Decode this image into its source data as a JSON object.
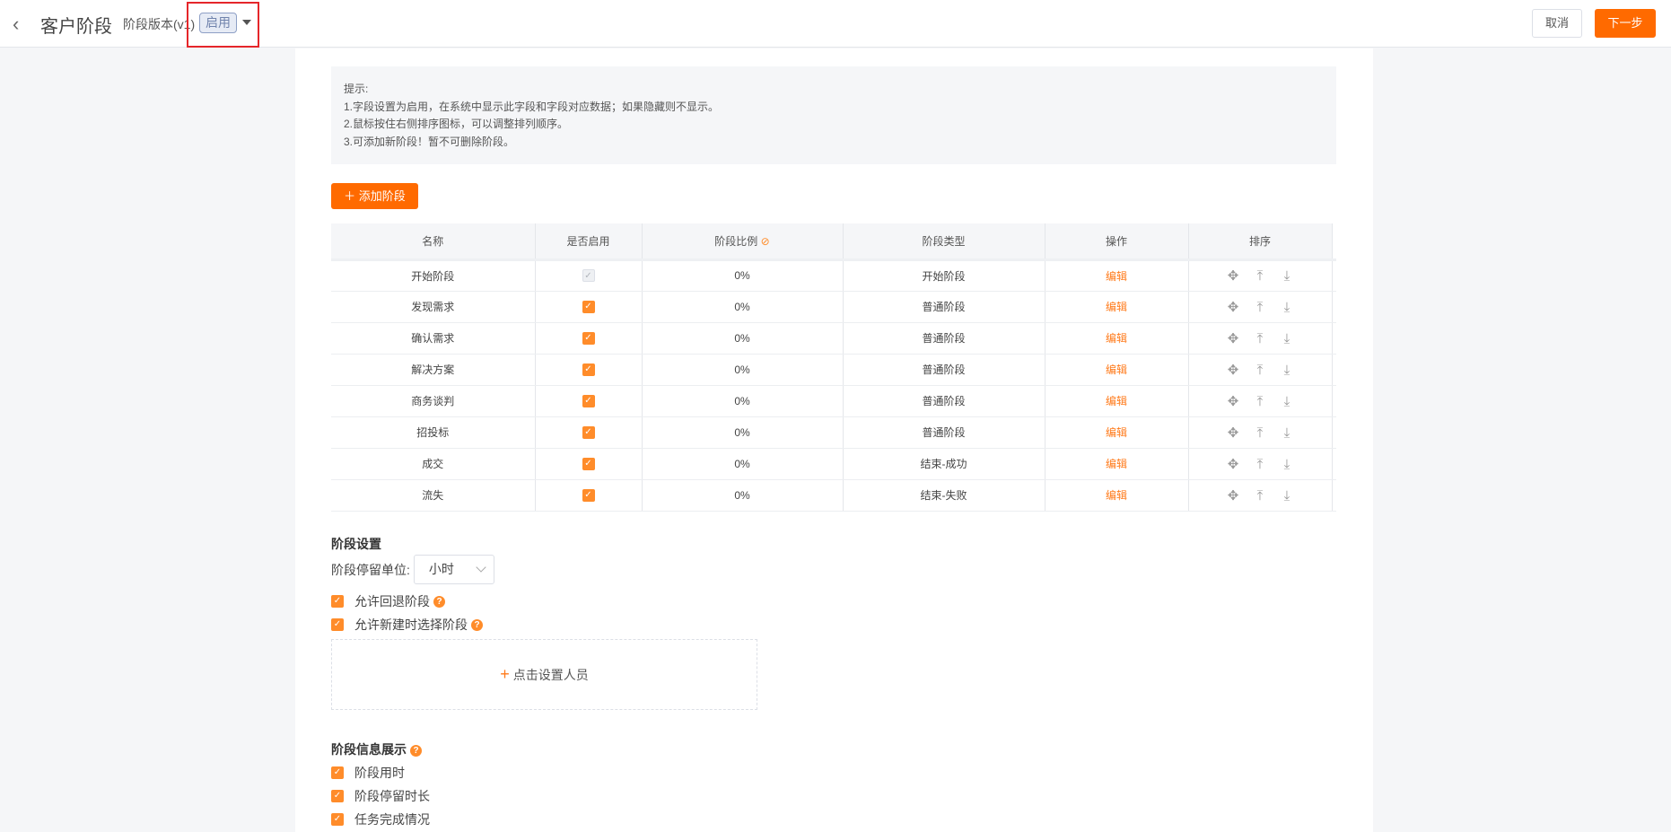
{
  "header": {
    "back_icon": "chevron-left",
    "title": "客户阶段",
    "version": "阶段版本(v1)",
    "status_tag": "启用",
    "cancel": "取消",
    "next": "下一步"
  },
  "hint": {
    "title": "提示:",
    "lines": [
      "1.字段设置为启用，在系统中显示此字段和字段对应数据；如果隐藏则不显示。",
      "2.鼠标按住右侧排序图标，可以调整排列顺序。",
      "3.可添加新阶段！暂不可删除阶段。"
    ]
  },
  "add_stage": "添加阶段",
  "table": {
    "columns": [
      "名称",
      "是否启用",
      "阶段比例",
      "阶段类型",
      "操作",
      "排序"
    ],
    "rows": [
      {
        "name": "开始阶段",
        "enabled": true,
        "disabled": true,
        "ratio": "0%",
        "type": "开始阶段",
        "action": "编辑"
      },
      {
        "name": "发现需求",
        "enabled": true,
        "ratio": "0%",
        "type": "普通阶段",
        "action": "编辑"
      },
      {
        "name": "确认需求",
        "enabled": true,
        "ratio": "0%",
        "type": "普通阶段",
        "action": "编辑"
      },
      {
        "name": "解决方案",
        "enabled": true,
        "ratio": "0%",
        "type": "普通阶段",
        "action": "编辑"
      },
      {
        "name": "商务谈判",
        "enabled": true,
        "ratio": "0%",
        "type": "普通阶段",
        "action": "编辑"
      },
      {
        "name": "招投标",
        "enabled": true,
        "ratio": "0%",
        "type": "普通阶段",
        "action": "编辑"
      },
      {
        "name": "成交",
        "enabled": true,
        "ratio": "0%",
        "type": "结束-成功",
        "action": "编辑"
      },
      {
        "name": "流失",
        "enabled": true,
        "ratio": "0%",
        "type": "结束-失败",
        "action": "编辑"
      }
    ]
  },
  "settings": {
    "title": "阶段设置",
    "unit_label": "阶段停留单位:",
    "unit_value": "小时",
    "allow_back": "允许回退阶段",
    "allow_select": "允许新建时选择阶段",
    "set_people": "点击设置人员"
  },
  "display": {
    "title": "阶段信息展示",
    "items": [
      "阶段用时",
      "阶段停留时长",
      "任务完成情况"
    ]
  },
  "colors": {
    "accent": "#ff6a00"
  }
}
